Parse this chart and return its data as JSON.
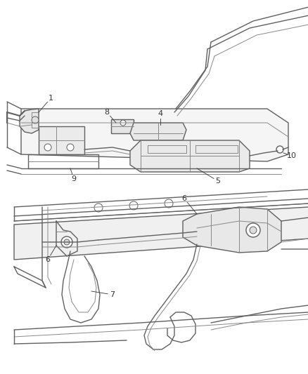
{
  "bg_color": "#ffffff",
  "line_color": "#606060",
  "label_color": "#333333",
  "fig_width": 4.39,
  "fig_height": 5.33,
  "dpi": 100
}
